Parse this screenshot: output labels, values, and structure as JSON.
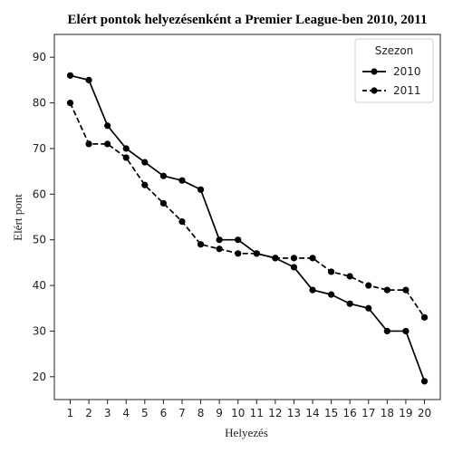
{
  "chart_data": {
    "type": "line",
    "title": "Elért pontok helyezésenként a Premier League-ben 2010, 2011",
    "xlabel": "Helyezés",
    "ylabel": "Elért pont",
    "x": [
      1,
      2,
      3,
      4,
      5,
      6,
      7,
      8,
      9,
      10,
      11,
      12,
      13,
      14,
      15,
      16,
      17,
      18,
      19,
      20
    ],
    "xlim": [
      0.15,
      20.85
    ],
    "ylim": [
      15,
      95
    ],
    "yticks": [
      20,
      30,
      40,
      50,
      60,
      70,
      80,
      90
    ],
    "grid": false,
    "legend": {
      "title": "Szezon",
      "placement": "top-right"
    },
    "series": [
      {
        "name": "2010",
        "line_style": "solid",
        "color": "#000000",
        "values": [
          86,
          85,
          75,
          70,
          67,
          64,
          63,
          61,
          50,
          50,
          47,
          46,
          44,
          39,
          38,
          36,
          35,
          30,
          30,
          19
        ]
      },
      {
        "name": "2011",
        "line_style": "dashed",
        "color": "#000000",
        "values": [
          80,
          71,
          71,
          68,
          62,
          58,
          54,
          49,
          48,
          47,
          47,
          46,
          46,
          46,
          43,
          42,
          40,
          39,
          39,
          33
        ]
      }
    ]
  }
}
